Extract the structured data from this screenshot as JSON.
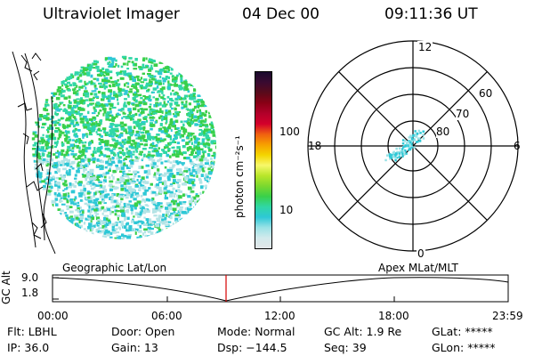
{
  "header": {
    "instrument": "Ultraviolet Imager",
    "date": "04 Dec 00",
    "time": "09:11:36 UT"
  },
  "colorbar": {
    "unit_label": "photon cm⁻²s⁻¹",
    "ticks": [
      "100",
      "10"
    ],
    "colors": [
      "#1a0a2e",
      "#3a0a30",
      "#5a0a1a",
      "#8a0015",
      "#b2002a",
      "#d4002b",
      "#f06010",
      "#f7a000",
      "#f4d500",
      "#f7f86a",
      "#b9e62a",
      "#7bd82e",
      "#39d04a",
      "#30d7a6",
      "#2ec8d6",
      "#9ae2e6",
      "#d2eaec",
      "#e2e6e8"
    ]
  },
  "polar": {
    "mlt_labels": {
      "top": "12",
      "left": "18",
      "right": "6",
      "bottom": "0"
    },
    "lat_labels": [
      "60",
      "70",
      "80"
    ]
  },
  "timeline": {
    "left_label": "Geographic Lat/Lon",
    "right_label": "Apex MLat/MLT",
    "axis_title": "GC Alt",
    "y_ticks": [
      "9.0",
      "1.8"
    ],
    "x_ticks": [
      "00:00",
      "06:00",
      "12:00",
      "18:00",
      "23:59"
    ],
    "marker_time": "09:11:36"
  },
  "status": {
    "row1": [
      {
        "label": "Flt:",
        "value": "LBHL"
      },
      {
        "label": "Door:",
        "value": "Open"
      },
      {
        "label": "Mode:",
        "value": "Normal"
      },
      {
        "label": "GC Alt:",
        "value": "1.9 Re"
      },
      {
        "label": "GLat:",
        "value": "*****"
      }
    ],
    "row2": [
      {
        "label": "IP:",
        "value": "36.0"
      },
      {
        "label": "Gain:",
        "value": "13"
      },
      {
        "label": "Dsp:",
        "value": "−144.5"
      },
      {
        "label": "Seq:",
        "value": "39"
      },
      {
        "label": "GLon:",
        "value": "*****"
      }
    ]
  }
}
